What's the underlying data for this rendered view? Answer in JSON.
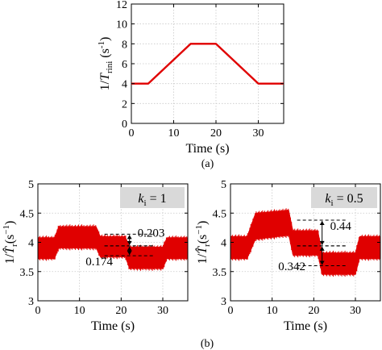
{
  "colors": {
    "signal": "#e00000",
    "axis": "#000000",
    "grid": "#c8c8c8",
    "legend_bg": "#d9d9d9"
  },
  "chart_data": [
    {
      "id": "a",
      "type": "line",
      "caption": "(a)",
      "xlabel": "Time (s)",
      "ylabel_text": "1/",
      "ylabel_symbol": "T",
      "ylabel_sub": "rini",
      "ylabel_unit": " (s",
      "ylabel_exp": "-1",
      "ylabel_close": ")",
      "xlim": [
        0,
        36
      ],
      "ylim": [
        0,
        12
      ],
      "xticks": [
        0,
        10,
        20,
        30
      ],
      "yticks": [
        0,
        2,
        4,
        6,
        8,
        10,
        12
      ],
      "grid": true,
      "series": [
        {
          "x": [
            0,
            4,
            14,
            20,
            30,
            36
          ],
          "y": [
            4,
            4,
            8,
            8,
            4,
            4
          ]
        }
      ]
    },
    {
      "id": "b1",
      "type": "area",
      "xlabel": "Time (s)",
      "ylabel_text": "1/",
      "ylabel_symbol": "T̂",
      "ylabel_sub": "r",
      "ylabel_unit": "(s",
      "ylabel_exp": "−1",
      "ylabel_close": ")",
      "xlim": [
        0,
        36
      ],
      "ylim": [
        3,
        5
      ],
      "xticks": [
        0,
        10,
        20,
        30
      ],
      "yticks": [
        3,
        3.5,
        4,
        4.5,
        5
      ],
      "ytick_labels": [
        "3",
        "3.5",
        "4",
        "4.5",
        "5"
      ],
      "grid": true,
      "legend_k": "k",
      "legend_sub": "i",
      "legend_val": " = 1",
      "band": {
        "x": [
          0,
          4,
          5,
          14,
          15,
          21,
          22,
          30,
          31,
          36
        ],
        "upper": [
          4.08,
          4.08,
          4.27,
          4.27,
          4.1,
          4.1,
          3.92,
          3.92,
          4.08,
          4.08
        ],
        "lower": [
          3.72,
          3.72,
          3.9,
          3.9,
          3.75,
          3.75,
          3.55,
          3.55,
          3.72,
          3.72
        ]
      },
      "annotations": [
        {
          "label": "0.203",
          "ref_upper": 4.14,
          "ref_lower": 3.94,
          "x": 22
        },
        {
          "label": "0.174",
          "ref_upper": 3.94,
          "ref_lower": 3.77,
          "x": 22
        }
      ]
    },
    {
      "id": "b2",
      "type": "area",
      "xlabel": "Time (s)",
      "ylabel_text": "1/",
      "ylabel_symbol": "T̂",
      "ylabel_sub": "r",
      "ylabel_unit": "(s",
      "ylabel_exp": "−1",
      "ylabel_close": ")",
      "xlim": [
        0,
        36
      ],
      "ylim": [
        3,
        5
      ],
      "xticks": [
        0,
        10,
        20,
        30
      ],
      "yticks": [
        3,
        3.5,
        4,
        4.5,
        5
      ],
      "ytick_labels": [
        "3",
        "3.5",
        "4",
        "4.5",
        "5"
      ],
      "grid": true,
      "legend_k": "k",
      "legend_sub": "i",
      "legend_val": " = 0.5",
      "band": {
        "x": [
          0,
          4,
          6,
          14,
          15,
          21,
          22,
          30,
          31,
          36
        ],
        "upper": [
          4.1,
          4.1,
          4.5,
          4.55,
          4.2,
          4.2,
          3.82,
          3.82,
          4.1,
          4.1
        ],
        "lower": [
          3.72,
          3.72,
          4.05,
          4.12,
          3.78,
          3.78,
          3.45,
          3.45,
          3.72,
          3.72
        ]
      },
      "annotations": [
        {
          "label": "0.44",
          "ref_upper": 4.38,
          "ref_lower": 3.94,
          "x": 22
        },
        {
          "label": "0.342",
          "ref_upper": 3.94,
          "ref_lower": 3.6,
          "x": 22
        }
      ]
    }
  ],
  "caption_b": "(b)"
}
